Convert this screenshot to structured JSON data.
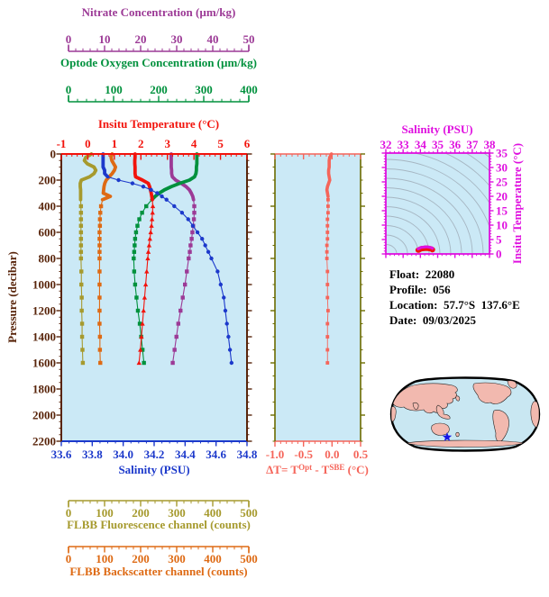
{
  "figure_info": {
    "float": "Float:  22080",
    "profile": "Profile:  056",
    "location": "Location:  57.7°S  137.6°E",
    "date": "Date:  09/03/2025"
  },
  "colors": {
    "plot_bg": "#CBE9F6",
    "contour": "#A6B6C2",
    "mid_y_axis": "#6B6B00",
    "map_land": "#F2B9AF",
    "map_ocean": "#C9E7F2",
    "map_outline": "#000000",
    "map_marker": "#1515E6"
  },
  "axes": {
    "nitrate": {
      "title": "Nitrate Concentration (µm/kg)",
      "tick_labels": [
        "0",
        "10",
        "20",
        "30",
        "40",
        "50"
      ],
      "min": 0,
      "max": 50,
      "minor": 2,
      "color": "#9C3A96"
    },
    "oxygen": {
      "title": "Optode Oxygen Concentration (µm/kg)",
      "tick_labels": [
        "0",
        "100",
        "200",
        "300",
        "400"
      ],
      "min": 0,
      "max": 400,
      "minor": 20,
      "color": "#00913D"
    },
    "temperature": {
      "title": "Insitu Temperature (°C)",
      "tick_labels": [
        "-1",
        "0",
        "1",
        "2",
        "3",
        "4",
        "5",
        "6"
      ],
      "min": -1,
      "max": 6,
      "minor": 0.2,
      "color": "#F2130C"
    },
    "pressure": {
      "title": "Pressure (decibar)",
      "tick_labels": [
        "0",
        "200",
        "400",
        "600",
        "800",
        "1000",
        "1200",
        "1400",
        "1600",
        "1800",
        "2000",
        "2200"
      ],
      "min": 0,
      "max": 2200,
      "minor": 50,
      "color": "#59250B"
    },
    "salinity": {
      "title": "Salinity (PSU)",
      "tick_labels": [
        "33.6",
        "33.8",
        "34.0",
        "34.2",
        "34.4",
        "34.6",
        "34.8"
      ],
      "min": 33.6,
      "max": 34.8,
      "minor": 0.05,
      "color": "#1C39CB"
    },
    "fluorescence": {
      "title": "FLBB Fluorescence channel (counts)",
      "tick_labels": [
        "0",
        "100",
        "200",
        "300",
        "400",
        "500"
      ],
      "min": 0,
      "max": 500,
      "minor": 20,
      "color": "#A69A2E"
    },
    "backscatter": {
      "title": "FLBB Backscatter channel (counts)",
      "tick_labels": [
        "0",
        "100",
        "200",
        "300",
        "400",
        "500"
      ],
      "min": 0,
      "max": 500,
      "minor": 20,
      "color": "#DE6A14"
    },
    "delta_t": {
      "title_parts": [
        "ΔT= T",
        "Opt",
        " - T",
        "SBE",
        " (°C)"
      ],
      "tick_labels": [
        "-1.0",
        "-0.5",
        "0.0",
        "0.5"
      ],
      "min": -1.0,
      "max": 0.5,
      "minor": 0.1,
      "color": "#F5655A"
    },
    "ts_salinity": {
      "title": "Salinity (PSU)",
      "tick_labels": [
        "32",
        "33",
        "34",
        "35",
        "36",
        "37",
        "38"
      ],
      "min": 32,
      "max": 38,
      "minor": 0.25,
      "color": "#DF10DF"
    },
    "ts_temperature": {
      "title": "Insitu Temperature (°C)",
      "tick_labels": [
        "35",
        "30",
        "25",
        "20",
        "15",
        "10",
        "5",
        "0"
      ],
      "min": 0,
      "max": 35,
      "minor": 1,
      "color": "#DF10DF"
    }
  },
  "chart_data": [
    {
      "type": "line",
      "title": "Vertical profiles vs pressure",
      "ylabel": "Pressure (decibar)",
      "ylim": [
        0,
        2200
      ],
      "grid": false,
      "pressure_dbar": [
        0,
        10,
        25,
        50,
        75,
        100,
        125,
        150,
        175,
        200,
        225,
        250,
        275,
        300,
        325,
        350,
        400,
        450,
        500,
        550,
        600,
        650,
        700,
        750,
        800,
        900,
        1000,
        1100,
        1200,
        1300,
        1400,
        1500,
        1600
      ],
      "series": [
        {
          "name": "FLBB Fluorescence channel (counts)",
          "axis_range": [
            0,
            500
          ],
          "color": "#A69A2E",
          "marker": "square",
          "values": [
            81,
            76,
            66,
            62,
            70,
            88,
            93,
            88,
            76,
            54,
            51,
            51,
            52,
            52,
            52,
            52,
            53,
            53,
            53,
            53,
            53,
            53,
            53,
            53,
            53,
            54,
            54,
            55,
            55,
            56,
            56,
            57,
            58
          ]
        },
        {
          "name": "FLBB Backscatter channel (counts)",
          "axis_range": [
            0,
            500
          ],
          "color": "#DE6A14",
          "marker": "square",
          "values": [
            137,
            136,
            134,
            136,
            141,
            146,
            143,
            137,
            129,
            121,
            117,
            115,
            114,
            113,
            132,
            111,
            107,
            105,
            104,
            104,
            103,
            103,
            103,
            103,
            103,
            103,
            103,
            103,
            103,
            103,
            104,
            104,
            105
          ]
        },
        {
          "name": "Nitrate Concentration (µm/kg)",
          "axis_range": [
            0,
            50
          ],
          "color": "#9C3A96",
          "marker": "square",
          "values": [
            29.6,
            29.6,
            29.6,
            29.6,
            29.6,
            29.6,
            29.7,
            29.7,
            29.9,
            30.8,
            32.3,
            33.6,
            34.5,
            35.0,
            35.4,
            35.6,
            35.8,
            35.8,
            35.7,
            35.5,
            35.3,
            35.1,
            34.8,
            34.6,
            34.3,
            33.8,
            33.3,
            32.7,
            32.1,
            31.5,
            31.0,
            30.5,
            30.0
          ]
        },
        {
          "name": "Optode Oxygen Concentration (µm/kg)",
          "axis_range": [
            0,
            400
          ],
          "color": "#00913D",
          "marker": "square",
          "values": [
            292,
            292,
            292,
            292,
            292,
            291,
            291,
            290,
            287,
            276,
            255,
            237,
            222,
            211,
            202,
            195,
            183,
            174,
            168,
            164,
            161,
            159,
            158,
            157,
            156,
            157,
            159,
            162,
            165,
            169,
            172,
            175,
            178
          ]
        },
        {
          "name": "Insitu Temperature (°C)",
          "axis_range": [
            -1,
            6
          ],
          "color": "#F2130C",
          "marker": "triangle",
          "values": [
            1.78,
            1.78,
            1.78,
            1.77,
            1.77,
            1.78,
            1.78,
            1.78,
            1.8,
            2.06,
            2.28,
            2.33,
            2.36,
            2.39,
            2.41,
            2.43,
            2.45,
            2.44,
            2.42,
            2.4,
            2.37,
            2.34,
            2.31,
            2.28,
            2.26,
            2.22,
            2.18,
            2.14,
            2.1,
            2.06,
            2.02,
            1.98,
            1.93
          ]
        },
        {
          "name": "Salinity (PSU)",
          "axis_range": [
            33.6,
            34.8
          ],
          "color": "#1C39CB",
          "marker": "circle",
          "values": [
            33.87,
            33.87,
            33.87,
            33.87,
            33.87,
            33.87,
            33.88,
            33.88,
            33.9,
            33.97,
            34.06,
            34.13,
            34.18,
            34.22,
            34.25,
            34.28,
            34.33,
            34.38,
            34.42,
            34.45,
            34.48,
            34.51,
            34.53,
            34.55,
            34.57,
            34.61,
            34.63,
            34.65,
            34.66,
            34.67,
            34.68,
            34.69,
            34.7
          ]
        }
      ]
    },
    {
      "type": "line",
      "title": "ΔT= TOpt - TSBE (°C) vs pressure",
      "xlim": [
        -1.0,
        0.5
      ],
      "color": "#F5655A",
      "marker": "square",
      "pressure_dbar": [
        0,
        10,
        25,
        50,
        75,
        100,
        125,
        150,
        175,
        200,
        225,
        250,
        275,
        300,
        325,
        350,
        400,
        450,
        500,
        550,
        600,
        650,
        700,
        750,
        800,
        900,
        1000,
        1100,
        1200,
        1300,
        1400,
        1500,
        1600
      ],
      "values": [
        -0.01,
        -0.02,
        -0.04,
        -0.05,
        -0.05,
        -0.05,
        -0.06,
        -0.06,
        -0.05,
        -0.04,
        -0.06,
        -0.08,
        -0.09,
        -0.08,
        -0.07,
        -0.07,
        -0.07,
        -0.07,
        -0.08,
        -0.08,
        -0.08,
        -0.08,
        -0.09,
        -0.09,
        -0.09,
        -0.08,
        -0.08,
        -0.08,
        -0.07,
        -0.08,
        -0.08,
        -0.08,
        -0.08
      ]
    },
    {
      "type": "scatter",
      "title": "T-S diagram with density contours",
      "xlabel": "Salinity (PSU)",
      "ylabel": "Insitu Temperature (°C)",
      "xlim": [
        32,
        38
      ],
      "ylim": [
        0,
        35
      ],
      "line_color": "#DF10DF",
      "edge_color": "#F2130C",
      "salinity": [
        33.87,
        33.88,
        33.9,
        33.97,
        34.06,
        34.13,
        34.18,
        34.22,
        34.25,
        34.28,
        34.33,
        34.38,
        34.42,
        34.48,
        34.53,
        34.57,
        34.61,
        34.63,
        34.66,
        34.68,
        34.7
      ],
      "temperature": [
        1.78,
        1.78,
        1.8,
        2.06,
        2.28,
        2.33,
        2.36,
        2.39,
        2.41,
        2.43,
        2.45,
        2.44,
        2.42,
        2.37,
        2.31,
        2.26,
        2.22,
        2.18,
        2.1,
        2.02,
        1.93
      ]
    }
  ]
}
